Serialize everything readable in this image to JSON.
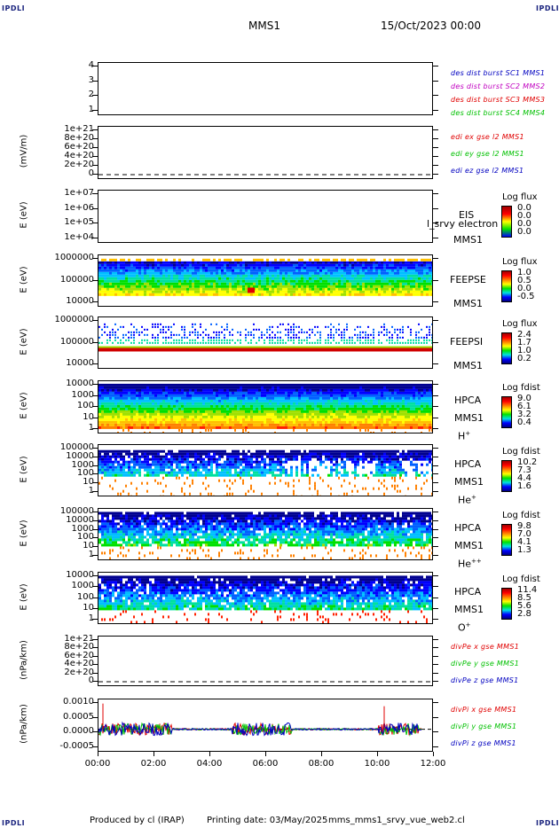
{
  "header": {
    "corner_tl": "IPDLI",
    "corner_tr": "IPDLI",
    "corner_bl": "IPDLI",
    "corner_br": "IPDLI",
    "spacecraft": "MMS1",
    "datetime": "15/Oct/2023 00:00"
  },
  "footer": {
    "produced_by": "Produced by cl (IRAP)",
    "printing_date": "Printing date: 03/May/2025",
    "script": "mms_mms1_srvy_vue_web2.cl"
  },
  "colors": {
    "red": "#e00000",
    "green": "#00c000",
    "blue": "#0000c0",
    "magenta": "#c000c0",
    "dark": "#1a237e"
  },
  "x_axis": {
    "ticks": [
      "00:00",
      "02:00",
      "04:00",
      "06:00",
      "08:00",
      "10:00",
      "12:00"
    ]
  },
  "chart_data": [
    {
      "type": "line",
      "title": "",
      "ylabel": "",
      "yticks": [
        "4",
        "3",
        "2",
        "1"
      ],
      "legend": [
        {
          "label": "des dist burst SC1 MMS1",
          "color": "#0000c0"
        },
        {
          "label": "des dist burst SC2 MMS2",
          "color": "#c000c0"
        },
        {
          "label": "des dist burst SC3 MMS3",
          "color": "#e00000"
        },
        {
          "label": "des dist burst SC4 MMS4",
          "color": "#00c000"
        }
      ],
      "series": []
    },
    {
      "type": "line",
      "ylabel": "(mV/m)",
      "yticks": [
        "1e+21",
        "8e+20",
        "6e+20",
        "4e+20",
        "2e+20",
        "0"
      ],
      "legend": [
        {
          "label": "edi ex gse l2 MMS1",
          "color": "#e00000"
        },
        {
          "label": "edi ey gse l2 MMS1",
          "color": "#00c000"
        },
        {
          "label": "edi ez gse l2 MMS1",
          "color": "#0000c0"
        }
      ],
      "series": []
    },
    {
      "type": "heatmap",
      "ylabel": "E (eV)",
      "yticks": [
        "1e+07",
        "1e+06",
        "1e+05",
        "1e+04"
      ],
      "instrument": "EIS",
      "instrument2": "MMS1",
      "overlay_text": "l_srvy electron to",
      "colorbar": {
        "title": "Log flux",
        "values": [
          "0.0",
          "0.0",
          "0.0",
          "0.0"
        ]
      }
    },
    {
      "type": "heatmap",
      "ylabel": "E (eV)",
      "yticks": [
        "1000000",
        "100000",
        "10000"
      ],
      "instrument": "FEEPSE",
      "instrument2": "MMS1",
      "colorbar": {
        "title": "Log flux",
        "values": [
          "1.0",
          "0.5",
          "0.0",
          "-0.5"
        ]
      }
    },
    {
      "type": "heatmap",
      "ylabel": "E (eV)",
      "yticks": [
        "1000000",
        "100000",
        "10000"
      ],
      "instrument": "FEEPSI",
      "instrument2": "MMS1",
      "colorbar": {
        "title": "Log flux",
        "values": [
          "2.4",
          "1.7",
          "1.0",
          "0.2"
        ]
      }
    },
    {
      "type": "heatmap",
      "ylabel": "E (eV)",
      "yticks": [
        "10000",
        "1000",
        "100",
        "10",
        "1"
      ],
      "instrument": "HPCA",
      "instrument2": "MMS1",
      "species": "H",
      "charge": "+",
      "colorbar": {
        "title": "Log fdist",
        "values": [
          "9.0",
          "6.1",
          "3.2",
          "0.4"
        ]
      }
    },
    {
      "type": "heatmap",
      "ylabel": "E (eV)",
      "yticks": [
        "100000",
        "10000",
        "1000",
        "100",
        "10",
        "1"
      ],
      "instrument": "HPCA",
      "instrument2": "MMS1",
      "species": "He",
      "charge": "+",
      "colorbar": {
        "title": "Log fdist",
        "values": [
          "10.2",
          "7.3",
          "4.4",
          "1.6"
        ]
      }
    },
    {
      "type": "heatmap",
      "ylabel": "E (eV)",
      "yticks": [
        "100000",
        "10000",
        "1000",
        "100",
        "10",
        "1"
      ],
      "instrument": "HPCA",
      "instrument2": "MMS1",
      "species": "He",
      "charge": "++",
      "colorbar": {
        "title": "Log fdist",
        "values": [
          "9.8",
          "7.0",
          "4.1",
          "1.3"
        ]
      }
    },
    {
      "type": "heatmap",
      "ylabel": "E (eV)",
      "yticks": [
        "10000",
        "1000",
        "100",
        "10",
        "1"
      ],
      "instrument": "HPCA",
      "instrument2": "MMS1",
      "species": "O",
      "charge": "+",
      "colorbar": {
        "title": "Log fdist",
        "values": [
          "11.4",
          "8.5",
          "5.6",
          "2.8"
        ]
      }
    },
    {
      "type": "line",
      "ylabel": "(nPa/km)",
      "yticks": [
        "1e+21",
        "8e+20",
        "6e+20",
        "4e+20",
        "2e+20",
        "0"
      ],
      "legend": [
        {
          "label": "divPe x gse MMS1",
          "color": "#e00000"
        },
        {
          "label": "divPe y gse MMS1",
          "color": "#00c000"
        },
        {
          "label": "divPe z gse MMS1",
          "color": "#0000c0"
        }
      ],
      "series": []
    },
    {
      "type": "line",
      "ylabel": "(nPa/km)",
      "yticks": [
        "0.0010",
        "0.0005",
        "0.0000",
        "-0.0005"
      ],
      "ylim": [
        -0.0008,
        0.0011
      ],
      "legend": [
        {
          "label": "divPi x gse MMS1",
          "color": "#e00000"
        },
        {
          "label": "divPi y gse MMS1",
          "color": "#00c000"
        },
        {
          "label": "divPi z gse MMS1",
          "color": "#0000c0"
        }
      ],
      "series": []
    }
  ]
}
